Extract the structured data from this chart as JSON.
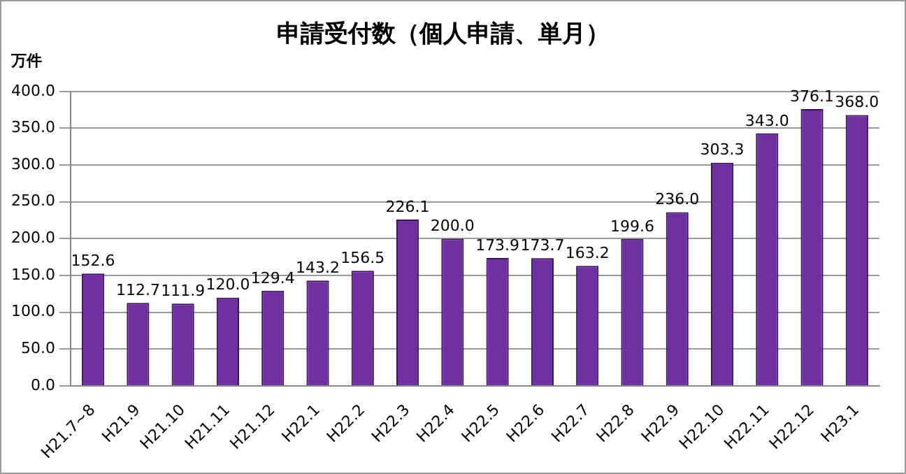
{
  "chart_data": {
    "type": "bar",
    "title": "申請受付数（個人申請、単月）",
    "ylabel": "万件",
    "categories": [
      "H21.7~8",
      "H21.9",
      "H21.10",
      "H21.11",
      "H21.12",
      "H22.1",
      "H22.2",
      "H22.3",
      "H22.4",
      "H22.5",
      "H22.6",
      "H22.7",
      "H22.8",
      "H22.9",
      "H22.10",
      "H22.11",
      "H22.12",
      "H23.1"
    ],
    "values": [
      152.6,
      112.7,
      111.9,
      120.0,
      129.4,
      143.2,
      156.5,
      226.1,
      200.0,
      173.9,
      173.7,
      163.2,
      199.6,
      236.0,
      303.3,
      343.0,
      376.1,
      368.0
    ],
    "value_labels": [
      "152.6",
      "112.7",
      "111.9",
      "120.0",
      "129.4",
      "143.2",
      "156.5",
      "226.1",
      "200.0",
      "173.9",
      "173.7",
      "163.2",
      "199.6",
      "236.0",
      "303.3",
      "343.0",
      "376.1",
      "368.0"
    ],
    "color": "#7030a0",
    "ylim": [
      0,
      400
    ],
    "yticks": [
      {
        "value": 0,
        "label": "0.0"
      },
      {
        "value": 50,
        "label": "50.0"
      },
      {
        "value": 100,
        "label": "100.0"
      },
      {
        "value": 150,
        "label": "150.0"
      },
      {
        "value": 200,
        "label": "200.0"
      },
      {
        "value": 250,
        "label": "250.0"
      },
      {
        "value": 300,
        "label": "300.0"
      },
      {
        "value": 350,
        "label": "350.0"
      },
      {
        "value": 400,
        "label": "400.0"
      }
    ],
    "grid": "y",
    "legend": false
  }
}
